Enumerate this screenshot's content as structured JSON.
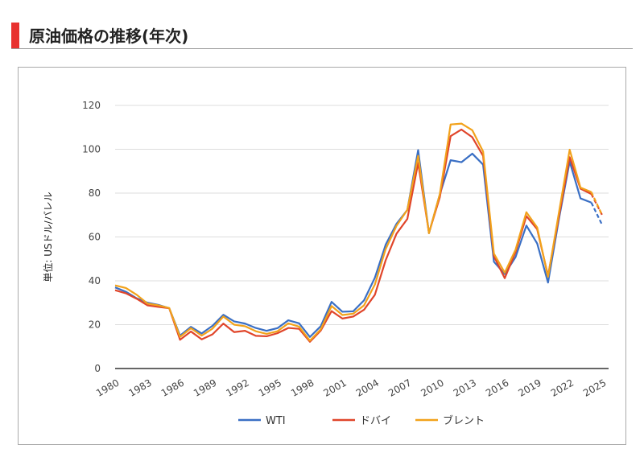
{
  "header": {
    "title": "原油価格の推移(年次)"
  },
  "chart_data": {
    "type": "line",
    "title": "",
    "xlabel": "",
    "ylabel": "単位: USドル/バレル",
    "ylim": [
      0,
      120
    ],
    "yticks": [
      0,
      20,
      40,
      60,
      80,
      100,
      120
    ],
    "grid": true,
    "legend": "bottom",
    "x": [
      1980,
      1981,
      1982,
      1983,
      1984,
      1985,
      1986,
      1987,
      1988,
      1989,
      1990,
      1991,
      1992,
      1993,
      1994,
      1995,
      1996,
      1997,
      1998,
      1999,
      2000,
      2001,
      2002,
      2003,
      2004,
      2005,
      2006,
      2007,
      2008,
      2009,
      2010,
      2011,
      2012,
      2013,
      2014,
      2015,
      2016,
      2017,
      2018,
      2019,
      2020,
      2021,
      2022,
      2023,
      2024,
      2025
    ],
    "xticks": [
      "1980",
      "1983",
      "1986",
      "1989",
      "1992",
      "1995",
      "1998",
      "2001",
      "2004",
      "2007",
      "2010",
      "2013",
      "2016",
      "2019",
      "2022",
      "2025"
    ],
    "dashed_from": 2024,
    "series": [
      {
        "name": "WTI",
        "color": "#3a6fc4",
        "values": [
          37,
          35,
          32,
          30,
          29,
          27.5,
          15,
          19,
          16,
          19.5,
          24.5,
          21.5,
          20.5,
          18.5,
          17.2,
          18.4,
          22,
          20.6,
          14.4,
          19.3,
          30.4,
          25.9,
          26.1,
          31.1,
          41.4,
          56.5,
          66,
          72.3,
          99.6,
          61.7,
          79.4,
          95,
          94.1,
          98,
          93,
          48.7,
          43.1,
          50.8,
          65.2,
          57,
          39.2,
          68,
          94.4,
          77.6,
          75.7,
          65.5
        ]
      },
      {
        "name": "ドバイ",
        "color": "#e0452a",
        "values": [
          35.7,
          34.3,
          31.8,
          28.8,
          28.1,
          27.5,
          13.1,
          16.9,
          13.3,
          15.6,
          20.5,
          16.6,
          17.2,
          14.9,
          14.7,
          16.1,
          18.5,
          18.1,
          12.2,
          17.3,
          26.2,
          22.8,
          23.7,
          26.8,
          33.6,
          49.4,
          61.5,
          68.2,
          93.8,
          61.9,
          78.1,
          106,
          109,
          105.5,
          97,
          51.2,
          41.2,
          53.1,
          69.5,
          63.5,
          42.3,
          69.2,
          96.4,
          82,
          79.6,
          70
        ]
      },
      {
        "name": "ブレント",
        "color": "#f2a21b",
        "values": [
          37.9,
          36.7,
          33.6,
          29.6,
          28.8,
          27.6,
          14.4,
          18.4,
          15,
          18.2,
          23.7,
          20,
          19.3,
          17,
          15.8,
          17,
          20.6,
          19.1,
          12.7,
          17.9,
          28.5,
          24.4,
          25,
          28.8,
          38.3,
          54.5,
          65.1,
          72.4,
          97,
          61.7,
          79.5,
          111.3,
          111.7,
          108.7,
          99,
          52.4,
          43.7,
          54.2,
          71.3,
          64.3,
          41.8,
          70.9,
          99.8,
          82.5,
          80.5,
          70
        ]
      }
    ]
  }
}
